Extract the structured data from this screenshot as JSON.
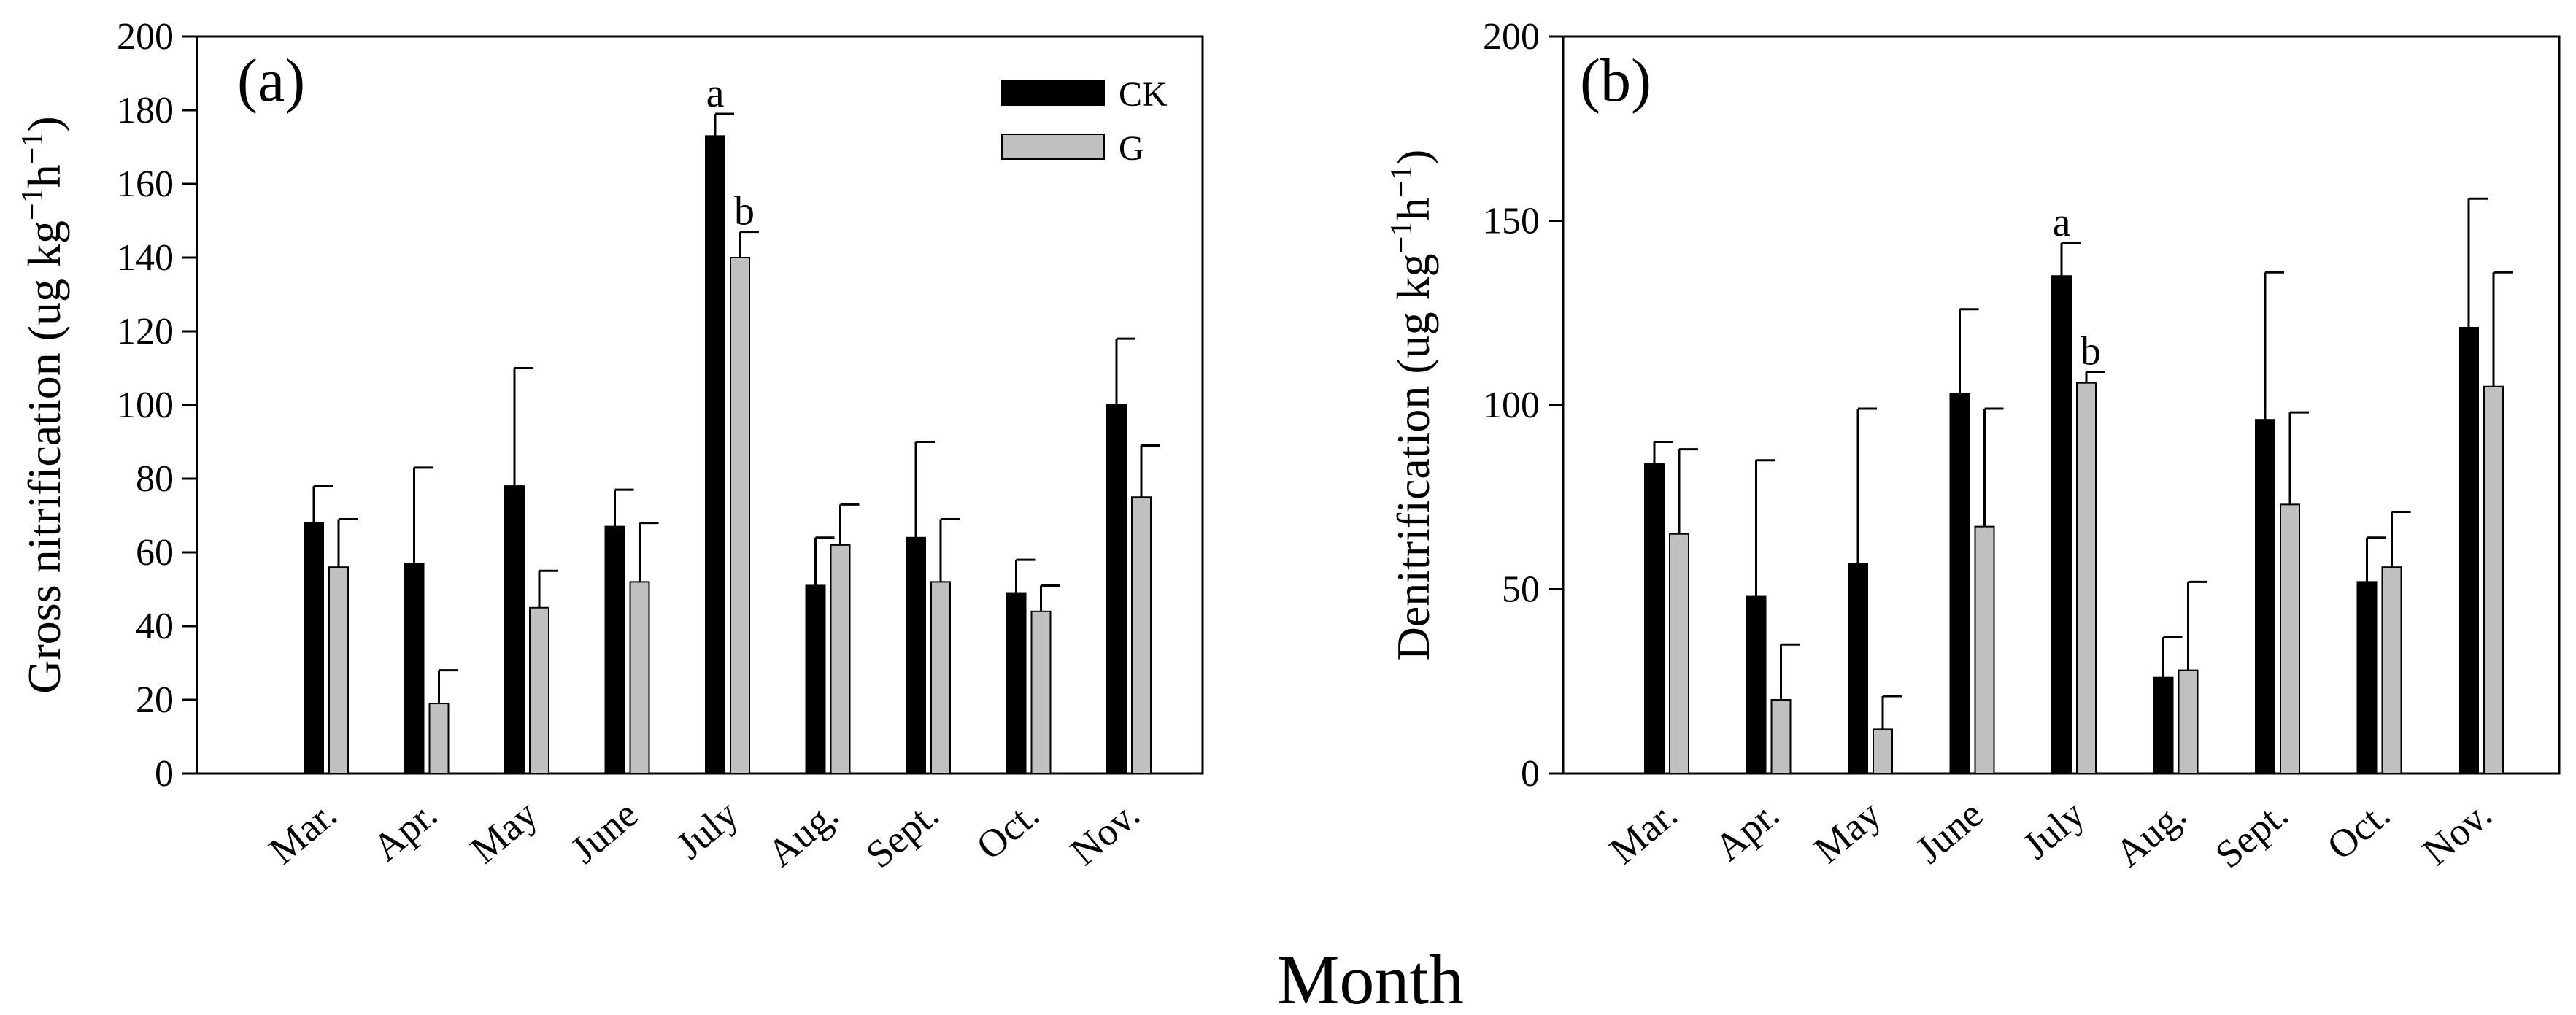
{
  "common_xlabel": "Month",
  "legend": [
    {
      "label": "CK",
      "color": "#000000"
    },
    {
      "label": "G",
      "color": "#c0c0c0"
    }
  ],
  "chart_data": [
    {
      "type": "bar",
      "panel_label": "(a)",
      "title": "",
      "xlabel": "Month",
      "ylabel_main": "Gross nitrification (ug kg",
      "ylabel_sup1": "−1",
      "ylabel_mid": "h",
      "ylabel_sup2": "−1",
      "ylabel_end": ")",
      "ylim": [
        0,
        200
      ],
      "yticks": [
        0,
        20,
        40,
        60,
        80,
        100,
        120,
        140,
        160,
        180,
        200
      ],
      "grid": false,
      "legend_position": "top-right",
      "categories": [
        "Mar.",
        "Apr.",
        "May",
        "June",
        "July",
        "Aug.",
        "Sept.",
        "Oct.",
        "Nov."
      ],
      "series": [
        {
          "name": "CK",
          "color": "#000000",
          "values": [
            68,
            57,
            78,
            67,
            173,
            51,
            64,
            49,
            100
          ],
          "errors": [
            10,
            26,
            32,
            10,
            6,
            13,
            26,
            9,
            18
          ]
        },
        {
          "name": "G",
          "color": "#c0c0c0",
          "values": [
            56,
            19,
            45,
            52,
            140,
            62,
            52,
            44,
            75
          ],
          "errors": [
            13,
            9,
            10,
            16,
            7,
            11,
            17,
            7,
            14
          ]
        }
      ],
      "annotations": [
        {
          "category": "July",
          "series": "CK",
          "text": "a"
        },
        {
          "category": "July",
          "series": "G",
          "text": "b"
        }
      ]
    },
    {
      "type": "bar",
      "panel_label": "(b)",
      "title": "",
      "xlabel": "Month",
      "ylabel_main": "Denitrification (ug kg",
      "ylabel_sup1": "−1",
      "ylabel_mid": "h",
      "ylabel_sup2": "−1",
      "ylabel_end": ")",
      "ylim": [
        0,
        200
      ],
      "yticks": [
        0,
        50,
        100,
        150,
        200
      ],
      "grid": false,
      "legend_position": "none",
      "categories": [
        "Mar.",
        "Apr.",
        "May",
        "June",
        "July",
        "Aug.",
        "Sept.",
        "Oct.",
        "Nov."
      ],
      "series": [
        {
          "name": "CK",
          "color": "#000000",
          "values": [
            84,
            48,
            57,
            103,
            135,
            26,
            96,
            52,
            121
          ],
          "errors": [
            6,
            37,
            42,
            23,
            9,
            11,
            40,
            12,
            35
          ]
        },
        {
          "name": "G",
          "color": "#c0c0c0",
          "values": [
            65,
            20,
            12,
            67,
            106,
            28,
            73,
            56,
            105
          ],
          "errors": [
            23,
            15,
            9,
            32,
            3,
            24,
            25,
            15,
            31
          ]
        }
      ],
      "annotations": [
        {
          "category": "July",
          "series": "CK",
          "text": "a"
        },
        {
          "category": "July",
          "series": "G",
          "text": "b"
        }
      ]
    }
  ]
}
